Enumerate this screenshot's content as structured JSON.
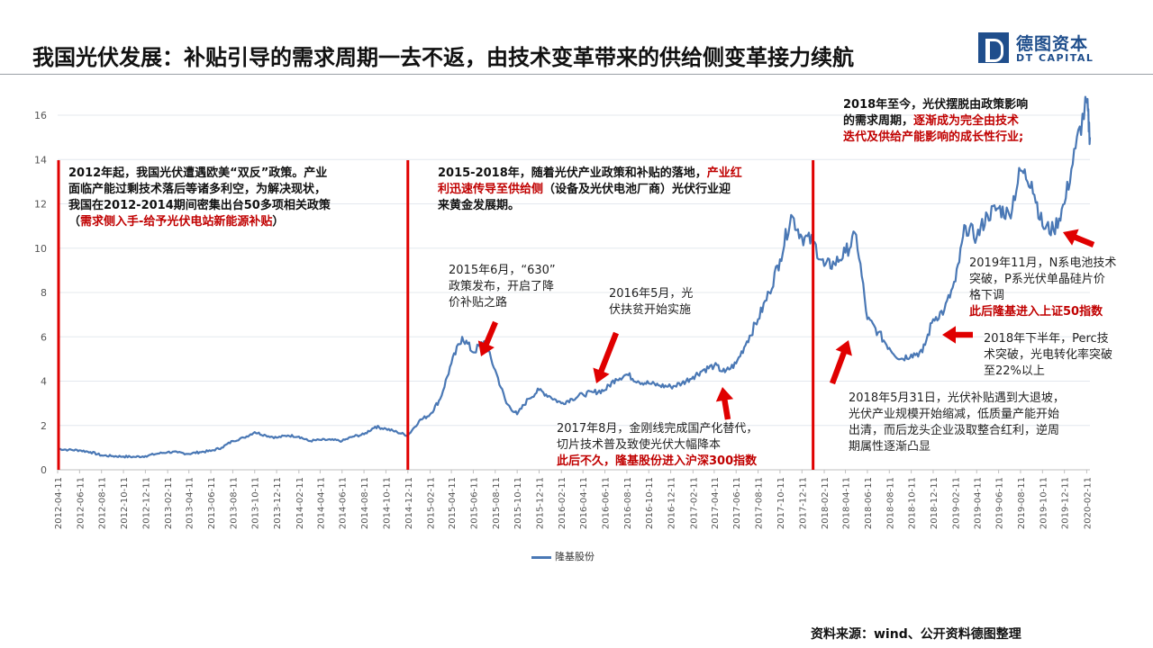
{
  "header": {
    "title": "我国光伏发展：补贴引导的需求周期一去不返，由技术变革带来的供给侧变革接力续航",
    "logo_cn": "德图资本",
    "logo_en": "DT CAPITAL"
  },
  "source": "资料来源：wind、公开资料德图整理",
  "colors": {
    "series": "#4a78b5",
    "highlight": "#c00000",
    "divider": "#e00000"
  },
  "chart_data": {
    "type": "line",
    "ylim": [
      0,
      16
    ],
    "yticks": [
      0,
      2,
      4,
      6,
      8,
      10,
      12,
      14,
      16
    ],
    "x_ticks": [
      "2012-04-11",
      "2012-06-11",
      "2012-08-11",
      "2012-10-11",
      "2012-12-11",
      "2013-02-11",
      "2013-04-11",
      "2013-06-11",
      "2013-08-11",
      "2013-10-11",
      "2013-12-11",
      "2014-02-11",
      "2014-04-11",
      "2014-06-11",
      "2014-08-11",
      "2014-10-11",
      "2014-12-11",
      "2015-02-11",
      "2015-04-11",
      "2015-06-11",
      "2015-08-11",
      "2015-10-11",
      "2015-12-11",
      "2016-02-11",
      "2016-04-11",
      "2016-06-11",
      "2016-08-11",
      "2016-10-11",
      "2016-12-11",
      "2017-02-11",
      "2017-04-11",
      "2017-06-11",
      "2017-08-11",
      "2017-10-11",
      "2017-12-11",
      "2018-02-11",
      "2018-04-11",
      "2018-06-11",
      "2018-08-11",
      "2018-10-11",
      "2018-12-11",
      "2019-02-11",
      "2019-04-11",
      "2019-06-11",
      "2019-08-11",
      "2019-10-11",
      "2019-12-11",
      "2020-02-11"
    ],
    "grid": true,
    "legend": "bottom",
    "series": [
      {
        "name": "隆基股份",
        "points": [
          [
            "2012-04-11",
            0.95
          ],
          [
            "2012-05-11",
            0.9
          ],
          [
            "2012-06-11",
            0.88
          ],
          [
            "2012-07-11",
            0.8
          ],
          [
            "2012-08-11",
            0.65
          ],
          [
            "2012-09-11",
            0.62
          ],
          [
            "2012-10-11",
            0.6
          ],
          [
            "2012-11-11",
            0.58
          ],
          [
            "2012-12-11",
            0.62
          ],
          [
            "2013-01-11",
            0.72
          ],
          [
            "2013-02-11",
            0.8
          ],
          [
            "2013-03-11",
            0.78
          ],
          [
            "2013-04-11",
            0.72
          ],
          [
            "2013-05-11",
            0.8
          ],
          [
            "2013-06-11",
            0.85
          ],
          [
            "2013-07-11",
            1.0
          ],
          [
            "2013-08-11",
            1.3
          ],
          [
            "2013-09-11",
            1.45
          ],
          [
            "2013-10-11",
            1.7
          ],
          [
            "2013-11-11",
            1.55
          ],
          [
            "2013-12-11",
            1.45
          ],
          [
            "2014-01-11",
            1.55
          ],
          [
            "2014-02-11",
            1.5
          ],
          [
            "2014-03-11",
            1.3
          ],
          [
            "2014-04-11",
            1.35
          ],
          [
            "2014-05-11",
            1.35
          ],
          [
            "2014-06-11",
            1.3
          ],
          [
            "2014-07-11",
            1.5
          ],
          [
            "2014-08-11",
            1.6
          ],
          [
            "2014-09-11",
            1.95
          ],
          [
            "2014-10-11",
            1.85
          ],
          [
            "2014-11-11",
            1.7
          ],
          [
            "2014-12-11",
            1.55
          ],
          [
            "2015-01-11",
            2.2
          ],
          [
            "2015-02-11",
            2.5
          ],
          [
            "2015-03-11",
            3.2
          ],
          [
            "2015-04-11",
            4.8
          ],
          [
            "2015-05-11",
            6.0
          ],
          [
            "2015-06-11",
            5.3
          ],
          [
            "2015-07-11",
            5.8
          ],
          [
            "2015-08-11",
            4.5
          ],
          [
            "2015-09-11",
            3.0
          ],
          [
            "2015-10-11",
            2.5
          ],
          [
            "2015-11-11",
            3.2
          ],
          [
            "2015-12-11",
            3.6
          ],
          [
            "2016-01-11",
            3.3
          ],
          [
            "2016-02-11",
            3.0
          ],
          [
            "2016-03-11",
            3.2
          ],
          [
            "2016-04-11",
            3.4
          ],
          [
            "2016-05-11",
            3.5
          ],
          [
            "2016-06-11",
            3.6
          ],
          [
            "2016-07-11",
            4.1
          ],
          [
            "2016-08-11",
            4.3
          ],
          [
            "2016-09-11",
            4.0
          ],
          [
            "2016-10-11",
            3.9
          ],
          [
            "2016-11-11",
            3.8
          ],
          [
            "2016-12-11",
            3.75
          ],
          [
            "2017-01-11",
            3.9
          ],
          [
            "2017-02-11",
            4.2
          ],
          [
            "2017-03-11",
            4.5
          ],
          [
            "2017-04-11",
            4.7
          ],
          [
            "2017-05-11",
            4.4
          ],
          [
            "2017-06-11",
            4.8
          ],
          [
            "2017-07-11",
            5.8
          ],
          [
            "2017-08-11",
            6.8
          ],
          [
            "2017-09-11",
            8.0
          ],
          [
            "2017-10-11",
            9.5
          ],
          [
            "2017-11-11",
            11.5
          ],
          [
            "2017-12-11",
            10.5
          ],
          [
            "2018-01-11",
            10.3
          ],
          [
            "2018-02-11",
            9.2
          ],
          [
            "2018-03-11",
            9.3
          ],
          [
            "2018-04-11",
            9.8
          ],
          [
            "2018-05-11",
            10.6
          ],
          [
            "2018-06-11",
            6.8
          ],
          [
            "2018-07-11",
            6.2
          ],
          [
            "2018-08-11",
            5.5
          ],
          [
            "2018-09-11",
            5.0
          ],
          [
            "2018-10-11",
            5.2
          ],
          [
            "2018-11-11",
            5.3
          ],
          [
            "2018-12-11",
            6.8
          ],
          [
            "2019-01-11",
            7.2
          ],
          [
            "2019-02-11",
            8.5
          ],
          [
            "2019-03-11",
            11.0
          ],
          [
            "2019-04-11",
            10.5
          ],
          [
            "2019-05-11",
            11.5
          ],
          [
            "2019-06-11",
            11.8
          ],
          [
            "2019-07-11",
            11.5
          ],
          [
            "2019-08-11",
            13.5
          ],
          [
            "2019-09-11",
            13.0
          ],
          [
            "2019-10-11",
            11.0
          ],
          [
            "2019-11-11",
            10.8
          ],
          [
            "2019-12-11",
            12.0
          ],
          [
            "2020-01-11",
            14.5
          ],
          [
            "2020-02-11",
            16.6
          ],
          [
            "2020-02-20",
            15.0
          ]
        ]
      }
    ],
    "annotations": {
      "a1_line1": "2012年起，我国光伏遭遇欧美“双反”政策。产业",
      "a1_line2": "面临产能过剩技术落后等诸多利空，为解决现状，",
      "a1_line3": "我国在2012-2014期间密集出台50多项相关政策",
      "a1_line4_pre": "（",
      "a1_line4_red": "需求侧入手-给予光伏电站新能源补贴",
      "a1_line4_post": "）",
      "a2_line1_pre": "2015-2018年，随着光伏产业政策和补贴的落地，",
      "a2_line1_red": "产业红",
      "a2_line2_red": "利迅速传导至供给侧",
      "a2_line2_post": "（设备及光伏电池厂商）光伏行业迎",
      "a2_line3": "来黄金发展期。",
      "a3_line1": "2018年至今，光伏摆脱由政策影响",
      "a3_line2_pre": "的需求周期，",
      "a3_line2_red": "逐渐成为完全由技术",
      "a3_line3_red": "迭代及供给产能影响的成长性行业;",
      "e1_line1": "2015年6月，“630”",
      "e1_line2": "政策发布，开启了降",
      "e1_line3": "价补贴之路",
      "e2_line1": "2016年5月，光",
      "e2_line2": "伏扶贫开始实施",
      "e3_line1": "2017年8月，金刚线完成国产化替代，",
      "e3_line2": "切片技术普及致使光伏大幅降本",
      "e3_line3_red": "此后不久，隆基股份进入沪深300指数",
      "e4_line1": "2018年5月31日，光伏补贴遇到大退坡，",
      "e4_line2": "光伏产业规模开始缩减，低质量产能开始",
      "e4_line3": "出清，而后龙头企业汲取整合红利，逆周",
      "e4_line4": "期属性逐渐凸显",
      "e5_line1": "2018年下半年，Perc技",
      "e5_line2": "术突破，光电转化率突破",
      "e5_line3": "至22%以上",
      "e6_line1": "2019年11月，N系电池技术",
      "e6_line2": "突破，P系光伏单晶硅片价",
      "e6_line3": "格下调",
      "e6_line4_red": "此后隆基进入上证50指数"
    }
  }
}
